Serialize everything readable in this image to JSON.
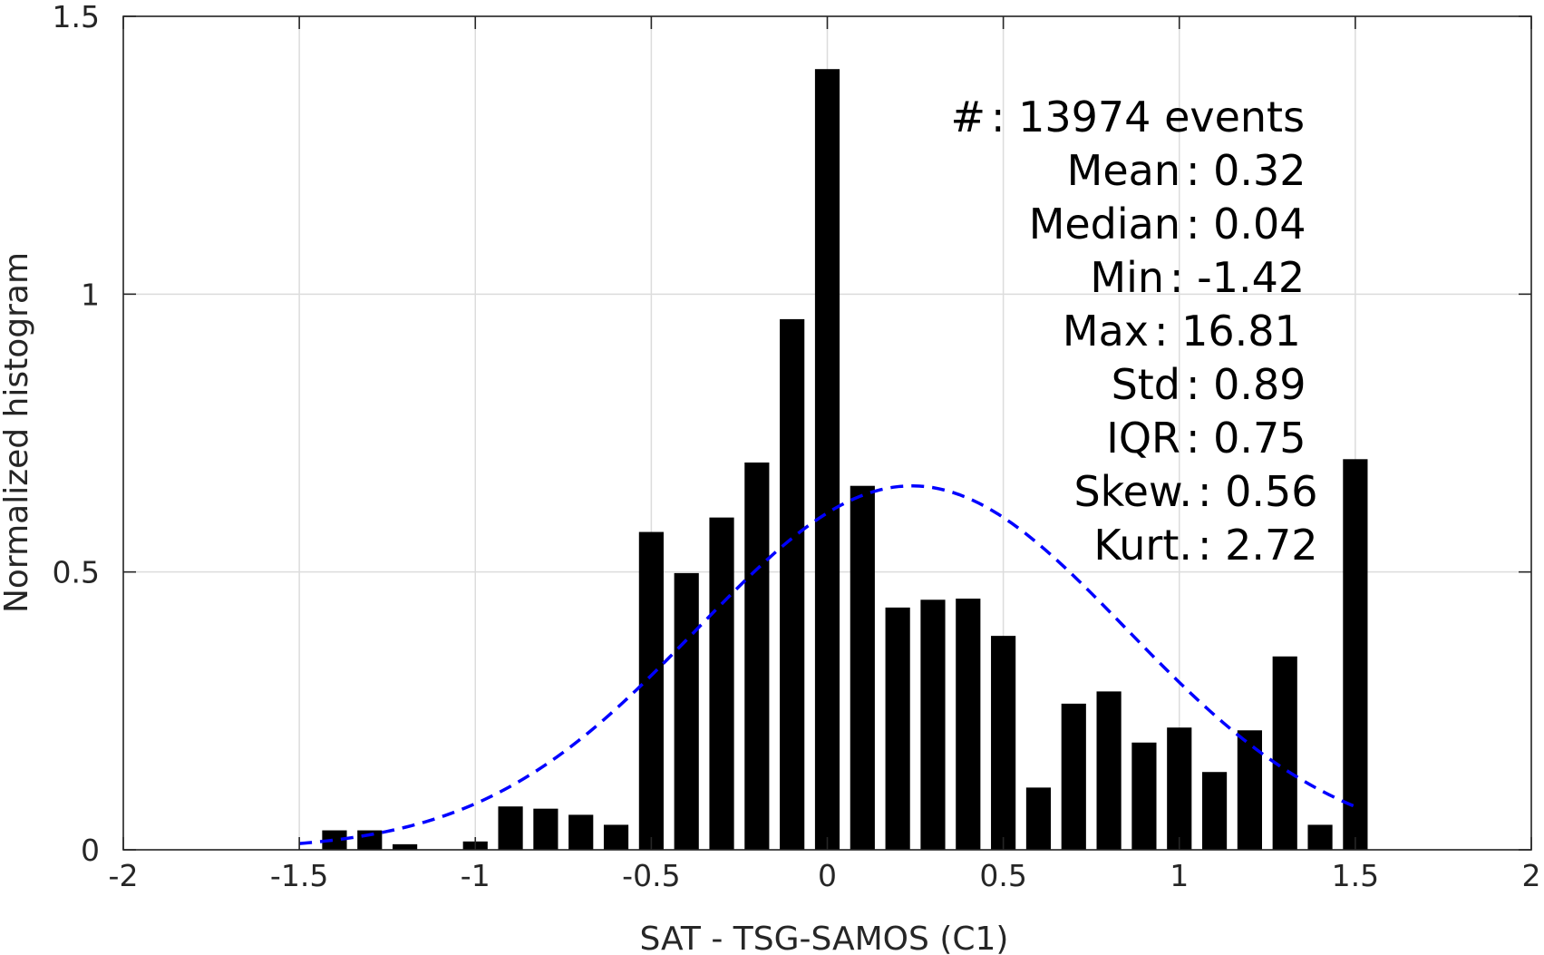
{
  "chart_data": {
    "type": "bar",
    "title": "",
    "xlabel": "SAT - TSG-SAMOS (C1)",
    "ylabel": "Normalized histogram",
    "xlim": [
      -2,
      2
    ],
    "ylim": [
      0,
      1.5
    ],
    "grid": true,
    "x_ticks": [
      "-2",
      "-1.5",
      "-1",
      "-0.5",
      "0",
      "0.5",
      "1",
      "1.5",
      "2"
    ],
    "y_ticks": [
      "0",
      "0.5",
      "1",
      "1.5"
    ],
    "bar_width": 0.07,
    "bar_color": "#000000",
    "fit_color": "#0000ff",
    "bins": [
      {
        "x": -1.4,
        "y": 0.035
      },
      {
        "x": -1.3,
        "y": 0.035
      },
      {
        "x": -1.2,
        "y": 0.01
      },
      {
        "x": -1.1,
        "y": 0.0
      },
      {
        "x": -1.0,
        "y": 0.015
      },
      {
        "x": -0.9,
        "y": 0.078
      },
      {
        "x": -0.8,
        "y": 0.074
      },
      {
        "x": -0.7,
        "y": 0.063
      },
      {
        "x": -0.6,
        "y": 0.045
      },
      {
        "x": -0.5,
        "y": 0.572
      },
      {
        "x": -0.4,
        "y": 0.498
      },
      {
        "x": -0.3,
        "y": 0.598
      },
      {
        "x": -0.2,
        "y": 0.697
      },
      {
        "x": -0.1,
        "y": 0.955
      },
      {
        "x": 0.0,
        "y": 1.405
      },
      {
        "x": 0.1,
        "y": 0.655
      },
      {
        "x": 0.2,
        "y": 0.436
      },
      {
        "x": 0.3,
        "y": 0.45
      },
      {
        "x": 0.4,
        "y": 0.452
      },
      {
        "x": 0.5,
        "y": 0.385
      },
      {
        "x": 0.6,
        "y": 0.112
      },
      {
        "x": 0.7,
        "y": 0.263
      },
      {
        "x": 0.8,
        "y": 0.285
      },
      {
        "x": 0.9,
        "y": 0.193
      },
      {
        "x": 1.0,
        "y": 0.22
      },
      {
        "x": 1.1,
        "y": 0.14
      },
      {
        "x": 1.2,
        "y": 0.215
      },
      {
        "x": 1.3,
        "y": 0.348
      },
      {
        "x": 1.4,
        "y": 0.045
      },
      {
        "x": 1.5,
        "y": 0.703
      }
    ],
    "fit_curve": {
      "type": "normal",
      "mean": 0.24,
      "std": 0.61,
      "x_range": [
        -1.5,
        1.5
      ]
    },
    "stats_lines": [
      "#  : 13974 events",
      "Mean : 0.32",
      "Median : 0.04",
      "Min : -1.42",
      "Max : 16.81",
      "Std : 0.89",
      "IQR : 0.75",
      "Skew. : 0.56",
      "Kurt. : 2.72"
    ]
  }
}
